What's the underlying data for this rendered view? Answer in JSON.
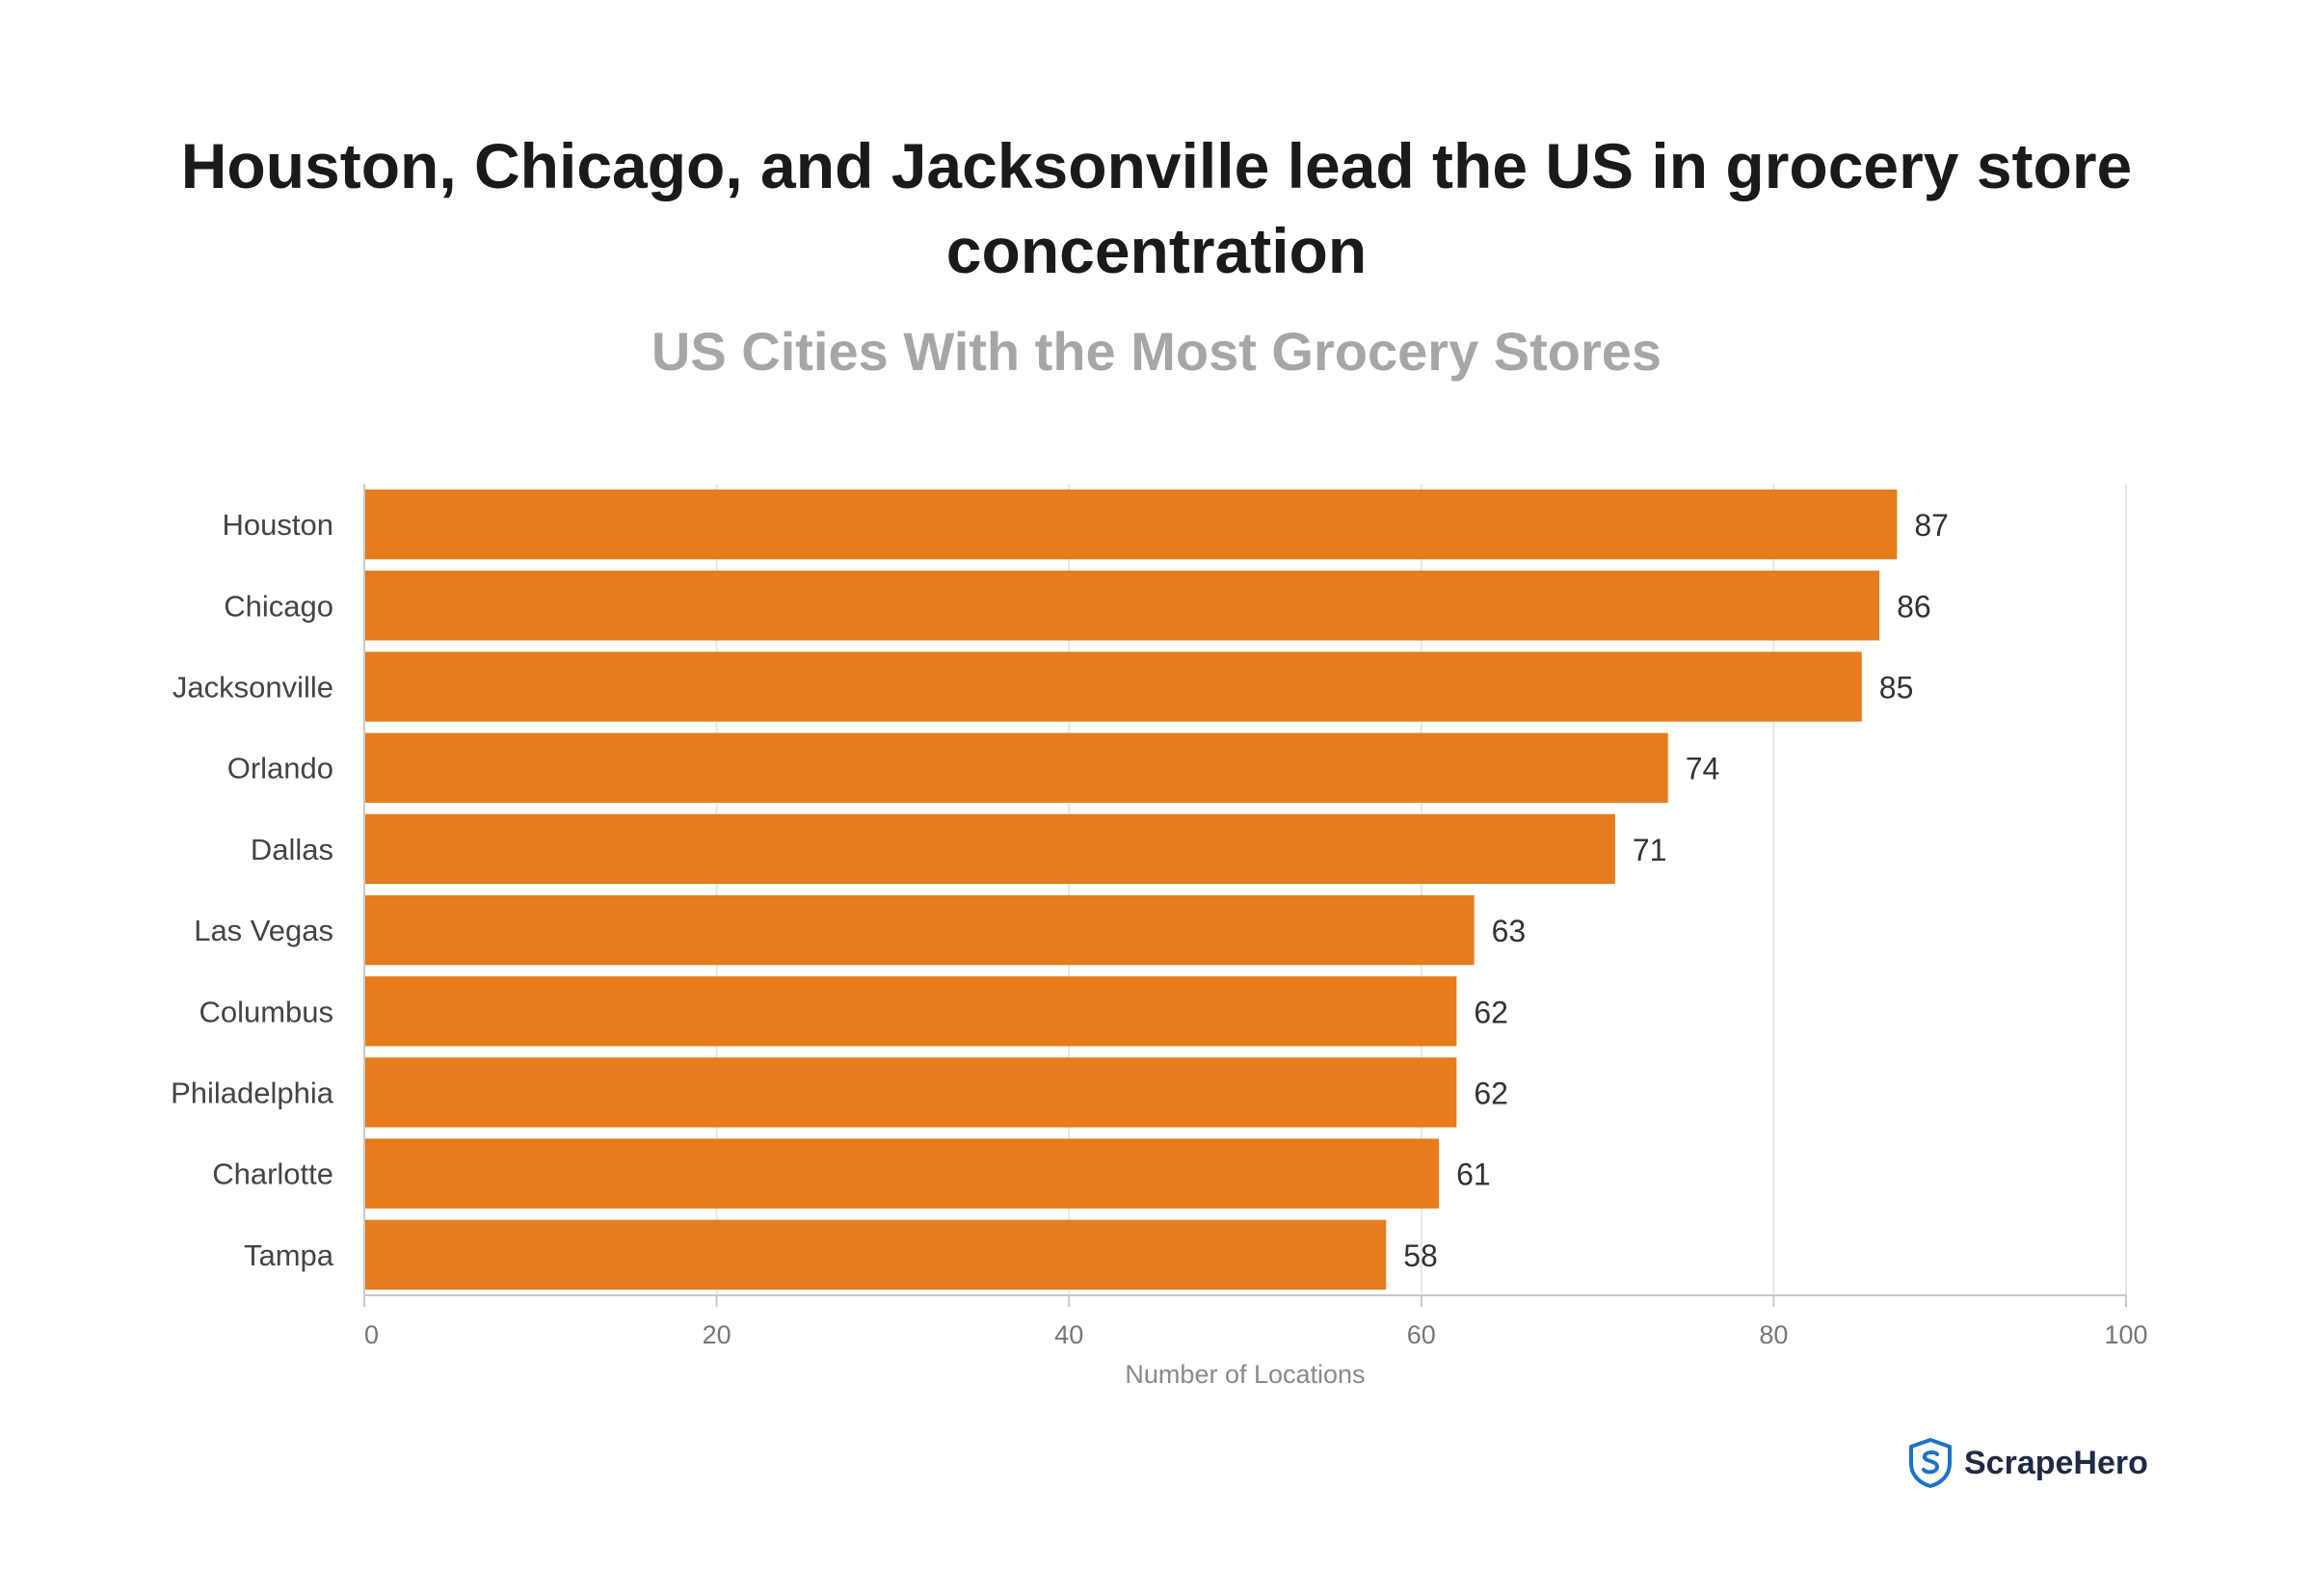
{
  "chart_data": {
    "type": "bar",
    "orientation": "horizontal",
    "title": "Houston, Chicago, and Jacksonville lead the US in grocery store concentration",
    "subtitle": "US Cities With the Most Grocery Stores",
    "categories": [
      "Houston",
      "Chicago",
      "Jacksonville",
      "Orlando",
      "Dallas",
      "Las Vegas",
      "Columbus",
      "Philadelphia",
      "Charlotte",
      "Tampa"
    ],
    "values": [
      87,
      86,
      85,
      74,
      71,
      63,
      62,
      62,
      61,
      58
    ],
    "xlabel": "Number of Locations",
    "ylabel": "",
    "xlim": [
      0,
      100
    ],
    "xticks": [
      "0",
      "20",
      "40",
      "60",
      "80",
      "100"
    ],
    "grid": "vertical",
    "data_labels": true,
    "colors": {
      "bar": "#e67c1b",
      "gridline": "#e6e6e6",
      "axis": "#c8c8c8"
    }
  },
  "brand": {
    "name": "ScrapeHero",
    "icon": "scrapehero-shield-icon",
    "color": "#1a73c8"
  }
}
